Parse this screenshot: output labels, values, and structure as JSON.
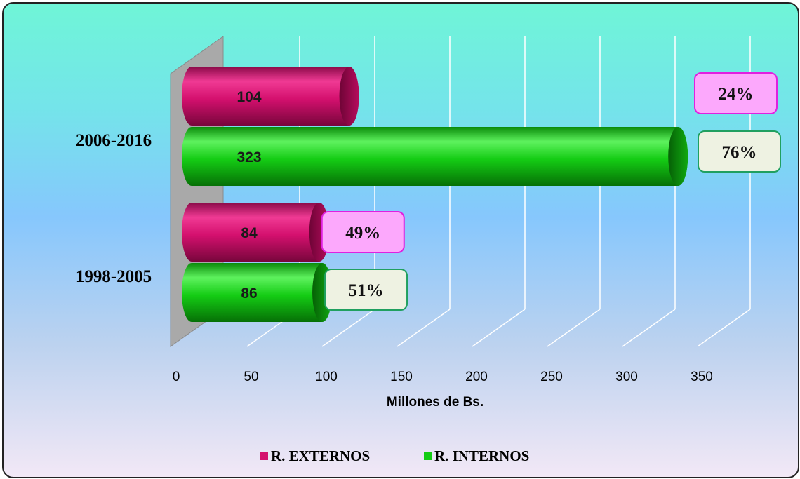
{
  "chart_data": {
    "type": "bar",
    "orientation": "horizontal",
    "categories": [
      "2006-2016",
      "1998-2005"
    ],
    "series": [
      {
        "name": "R. EXTERNOS",
        "values": [
          104,
          84
        ],
        "percent_labels": [
          "24%",
          "49%"
        ],
        "color": "#d4106e"
      },
      {
        "name": "R. INTERNOS",
        "values": [
          323,
          86
        ],
        "percent_labels": [
          "76%",
          "51%"
        ],
        "color": "#14cc14"
      }
    ],
    "xlabel": "Millones de Bs.",
    "ylabel": "",
    "xlim": [
      0,
      350
    ],
    "xticks": [
      "0",
      "50",
      "100",
      "150",
      "200",
      "250",
      "300",
      "350"
    ],
    "grid": true,
    "legend_position": "bottom",
    "style": "3d-cylinder",
    "colors": {
      "externos_label_fill": "#fca8fc",
      "externos_label_border": "#e020e0",
      "internos_label_fill": "#eef2e2",
      "internos_label_border": "#20a060",
      "back_wall": "#a9a9a9"
    }
  }
}
